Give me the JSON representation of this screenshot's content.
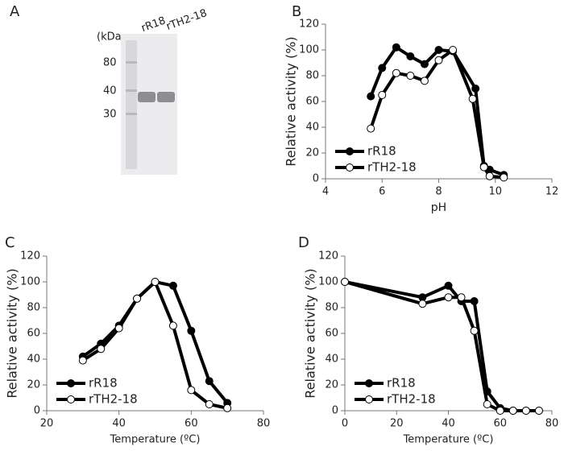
{
  "gel": {
    "panel": "A",
    "unit": "(kDa",
    "markers": [
      80,
      40,
      30
    ],
    "lanes": [
      "rR18",
      "rTH2-18"
    ]
  },
  "chart_data": [
    {
      "type": "line",
      "panel": "B",
      "xlabel": "pH",
      "ylabel": "Relative activity (%)",
      "xlim": [
        4,
        12
      ],
      "xticks": [
        4,
        6,
        8,
        10,
        12
      ],
      "ylim": [
        0,
        120
      ],
      "yticks": [
        0,
        20,
        40,
        60,
        80,
        100,
        120
      ],
      "legend": "lower left",
      "series": [
        {
          "name": "rR18",
          "color": "#000000",
          "x": [
            5.6,
            6.0,
            6.5,
            7.0,
            7.5,
            8.0,
            8.5,
            9.3,
            9.6,
            9.8,
            10.3
          ],
          "values": [
            64,
            86,
            102,
            95,
            89,
            100,
            99,
            70,
            10,
            7,
            3
          ]
        },
        {
          "name": "rTH2-18",
          "color": "#ffffff",
          "x": [
            5.6,
            6.0,
            6.5,
            7.0,
            7.5,
            8.0,
            8.5,
            9.2,
            9.6,
            9.8,
            10.3
          ],
          "values": [
            39,
            65,
            82,
            80,
            76,
            92,
            100,
            62,
            9,
            2,
            1
          ]
        }
      ]
    },
    {
      "type": "line",
      "panel": "C",
      "xlabel": "Temperature (ºC)",
      "ylabel": "Relative activity (%)",
      "xlim": [
        20,
        80
      ],
      "xticks": [
        20,
        40,
        60,
        80
      ],
      "ylim": [
        0,
        120
      ],
      "yticks": [
        0,
        20,
        40,
        60,
        80,
        100,
        120
      ],
      "legend": "lower left",
      "series": [
        {
          "name": "rR18",
          "color": "#000000",
          "x": [
            30,
            35,
            40,
            45,
            50,
            55,
            60,
            65,
            70
          ],
          "values": [
            42,
            52,
            66,
            87,
            100,
            97,
            62,
            23,
            6
          ]
        },
        {
          "name": "rTH2-18",
          "color": "#ffffff",
          "x": [
            30,
            35,
            40,
            45,
            50,
            55,
            60,
            65,
            70
          ],
          "values": [
            39,
            48,
            64,
            87,
            100,
            66,
            16,
            5,
            2
          ]
        }
      ]
    },
    {
      "type": "line",
      "panel": "D",
      "xlabel": "Temperature (ºC)",
      "ylabel": "Relative activity (%)",
      "xlim": [
        0,
        80
      ],
      "xticks": [
        0,
        20,
        40,
        60,
        80
      ],
      "ylim": [
        0,
        120
      ],
      "yticks": [
        0,
        20,
        40,
        60,
        80,
        100,
        120
      ],
      "legend": "lower left",
      "series": [
        {
          "name": "rR18",
          "color": "#000000",
          "x": [
            0,
            30,
            40,
            45,
            50,
            55,
            60,
            65,
            70,
            75
          ],
          "values": [
            100,
            88,
            97,
            85,
            85,
            15,
            2,
            0,
            0,
            0
          ]
        },
        {
          "name": "rTH2-18",
          "color": "#ffffff",
          "x": [
            0,
            30,
            40,
            45,
            50,
            55,
            60,
            65,
            70,
            75
          ],
          "values": [
            100,
            83,
            88,
            88,
            62,
            5,
            0,
            0,
            0,
            0
          ]
        }
      ]
    }
  ]
}
